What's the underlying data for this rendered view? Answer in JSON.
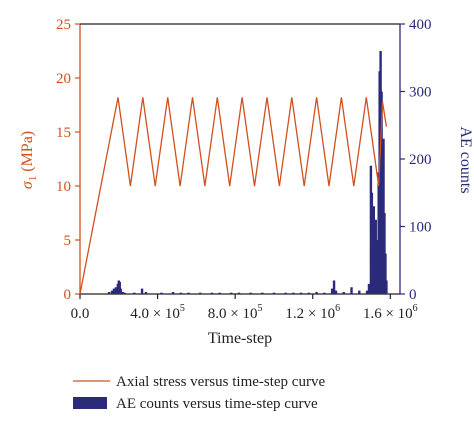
{
  "chart_data": {
    "type": "line",
    "xlabel": "Time-step",
    "ylabel_left_symbol": "σ",
    "ylabel_left_sub": "1",
    "ylabel_left_unit": " (MPa)",
    "ylabel_right": "AE counts",
    "xlim": [
      0,
      1650000
    ],
    "ylim_left": [
      0,
      25
    ],
    "ylim_right": [
      0,
      400
    ],
    "x_ticks": [
      {
        "value": 0,
        "mant": "0.0",
        "exp": ""
      },
      {
        "value": 400000,
        "mant": "4.0 × 10",
        "exp": "5"
      },
      {
        "value": 800000,
        "mant": "8.0 × 10",
        "exp": "5"
      },
      {
        "value": 1200000,
        "mant": "1.2 × 10",
        "exp": "6"
      },
      {
        "value": 1600000,
        "mant": "1.6 × 10",
        "exp": "6"
      }
    ],
    "y_left_ticks": [
      "0",
      "5",
      "10",
      "15",
      "20",
      "25"
    ],
    "y_right_ticks": [
      "0",
      "100",
      "200",
      "300",
      "400"
    ],
    "grid": false,
    "legend_position": "bottom",
    "series": [
      {
        "name": "Axial stress versus time-step curve",
        "axis": "left",
        "color": "#d2501e",
        "x": [
          0,
          196000,
          260000,
          324000,
          388000,
          452000,
          516000,
          580000,
          644000,
          708000,
          772000,
          836000,
          900000,
          964000,
          1028000,
          1092000,
          1156000,
          1220000,
          1284000,
          1348000,
          1412000,
          1476000,
          1540000,
          1560000,
          1580000
        ],
        "y": [
          0,
          18.2,
          10,
          18.2,
          10,
          18.2,
          10,
          18.2,
          10,
          18.2,
          10,
          18.2,
          10,
          18.2,
          10,
          18.2,
          10,
          18.2,
          10,
          18.2,
          10,
          18.2,
          10,
          17.8,
          15.5
        ]
      },
      {
        "name": "AE counts versus time-step curve",
        "axis": "right",
        "type": "bar",
        "color": "#2b2b7a",
        "x": [
          150000,
          165000,
          175000,
          185000,
          195000,
          200000,
          205000,
          210000,
          220000,
          230000,
          280000,
          320000,
          340000,
          420000,
          480000,
          520000,
          560000,
          620000,
          680000,
          720000,
          780000,
          820000,
          880000,
          940000,
          1000000,
          1060000,
          1100000,
          1140000,
          1180000,
          1220000,
          1260000,
          1300000,
          1310000,
          1320000,
          1360000,
          1400000,
          1440000,
          1480000,
          1490000,
          1500000,
          1505000,
          1510000,
          1515000,
          1520000,
          1525000,
          1530000,
          1535000,
          1540000,
          1545000,
          1550000,
          1555000,
          1560000,
          1565000,
          1570000,
          1575000,
          1580000
        ],
        "y": [
          3,
          5,
          8,
          10,
          15,
          20,
          18,
          8,
          3,
          2,
          2,
          8,
          3,
          2,
          3,
          2,
          2,
          2,
          2,
          2,
          2,
          2,
          2,
          2,
          2,
          2,
          2,
          2,
          2,
          3,
          2,
          8,
          20,
          5,
          3,
          10,
          5,
          5,
          15,
          190,
          150,
          90,
          130,
          70,
          110,
          35,
          80,
          180,
          330,
          360,
          300,
          160,
          230,
          120,
          60,
          20
        ]
      }
    ]
  }
}
